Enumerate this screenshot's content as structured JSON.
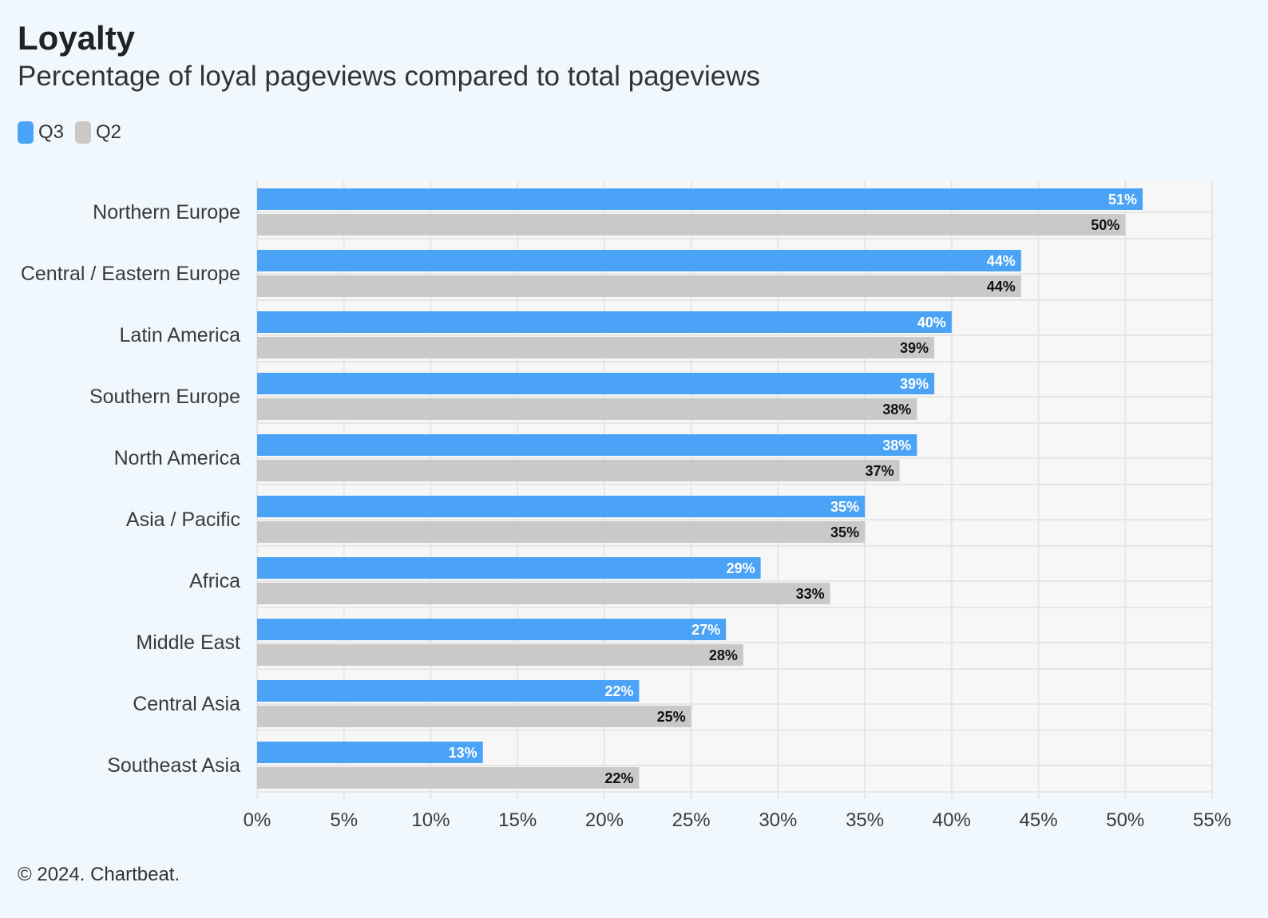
{
  "header": {
    "title": "Loyalty",
    "subtitle": "Percentage of loyal pageviews compared to total pageviews"
  },
  "legend": [
    {
      "name": "Q3",
      "color": "#4aa3f7"
    },
    {
      "name": "Q2",
      "color": "#cbc9c7"
    }
  ],
  "footer": {
    "copyright": "© 2024. Chartbeat."
  },
  "chart_data": {
    "type": "bar",
    "orientation": "horizontal",
    "title": "Loyalty",
    "subtitle": "Percentage of loyal pageviews compared to total pageviews",
    "categories": [
      "Northern Europe",
      "Central / Eastern Europe",
      "Latin America",
      "Southern Europe",
      "North America",
      "Asia / Pacific",
      "Africa",
      "Middle East",
      "Central Asia",
      "Southeast Asia"
    ],
    "series": [
      {
        "name": "Q3",
        "color": "#4aa3f7",
        "label_color": "#ffffff",
        "values": [
          51,
          44,
          40,
          39,
          38,
          35,
          29,
          27,
          22,
          13
        ]
      },
      {
        "name": "Q2",
        "color": "#cbc9c7",
        "label_color": "#111111",
        "values": [
          50,
          44,
          39,
          38,
          37,
          35,
          33,
          28,
          25,
          22
        ]
      }
    ],
    "xlim": [
      0,
      55
    ],
    "xticks": [
      0,
      5,
      10,
      15,
      20,
      25,
      30,
      35,
      40,
      45,
      50,
      55
    ],
    "tick_suffix": "%",
    "grid": true,
    "legend_position": "top-left"
  }
}
